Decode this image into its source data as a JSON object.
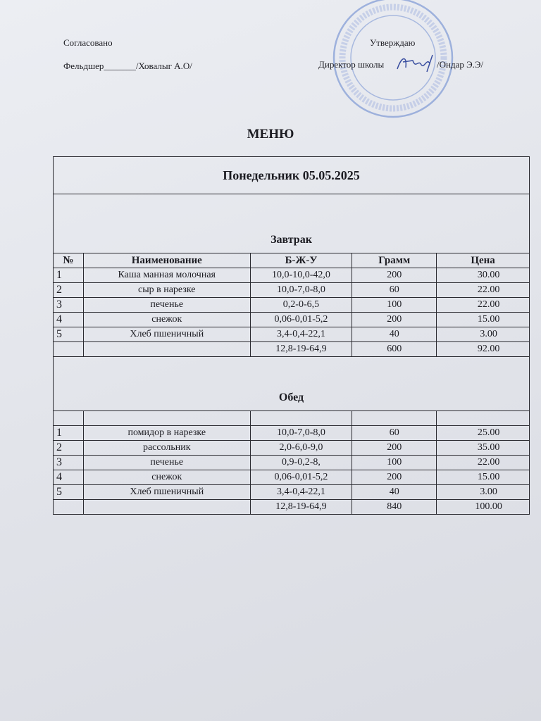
{
  "header": {
    "agreed": "Согласовано",
    "medic": "Фельдшер_______/Ховалыг А.О/",
    "approved": "Утверждаю",
    "director_label": "Директор школы",
    "director_name": "/Ондар Э.Э/",
    "stamp_text": "МБОУ СОШ №1",
    "stamp_color": "#5b7fc9"
  },
  "title": "МЕНЮ",
  "day": "Понедельник 05.05.2025",
  "columns": [
    "№",
    "Наименование",
    "Б-Ж-У",
    "Грамм",
    "Цена"
  ],
  "breakfast": {
    "label": "Завтрак",
    "rows": [
      {
        "n": "1",
        "name": "Каша манная молочная",
        "bju": "10,0-10,0-42,0",
        "gram": "200",
        "price": "30.00"
      },
      {
        "n": "2",
        "name": "сыр в нарезке",
        "bju": "10,0-7,0-8,0",
        "gram": "60",
        "price": "22.00"
      },
      {
        "n": "3",
        "name": "печенье",
        "bju": "0,2-0-6,5",
        "gram": "100",
        "price": "22.00"
      },
      {
        "n": "4",
        "name": "снежок",
        "bju": "0,06-0,01-5,2",
        "gram": "200",
        "price": "15.00"
      },
      {
        "n": "5",
        "name": "Хлеб пшеничный",
        "bju": "3,4-0,4-22,1",
        "gram": "40",
        "price": "3.00"
      }
    ],
    "total": {
      "bju": "12,8-19-64,9",
      "gram": "600",
      "price": "92.00"
    }
  },
  "lunch": {
    "label": "Обед",
    "rows": [
      {
        "n": "1",
        "name": "помидор в нарезке",
        "bju": "10,0-7,0-8,0",
        "gram": "60",
        "price": "25.00"
      },
      {
        "n": "2",
        "name": "рассольник",
        "bju": "2,0-6,0-9,0",
        "gram": "200",
        "price": "35.00"
      },
      {
        "n": "3",
        "name": "печенье",
        "bju": "0,9-0,2-8,",
        "gram": "100",
        "price": "22.00"
      },
      {
        "n": "4",
        "name": "снежок",
        "bju": "0,06-0,01-5,2",
        "gram": "200",
        "price": "15.00"
      },
      {
        "n": "5",
        "name": "Хлеб пшеничный",
        "bju": "3,4-0,4-22,1",
        "gram": "40",
        "price": "3.00"
      }
    ],
    "total": {
      "bju": "12,8-19-64,9",
      "gram": "840",
      "price": "100.00"
    }
  }
}
